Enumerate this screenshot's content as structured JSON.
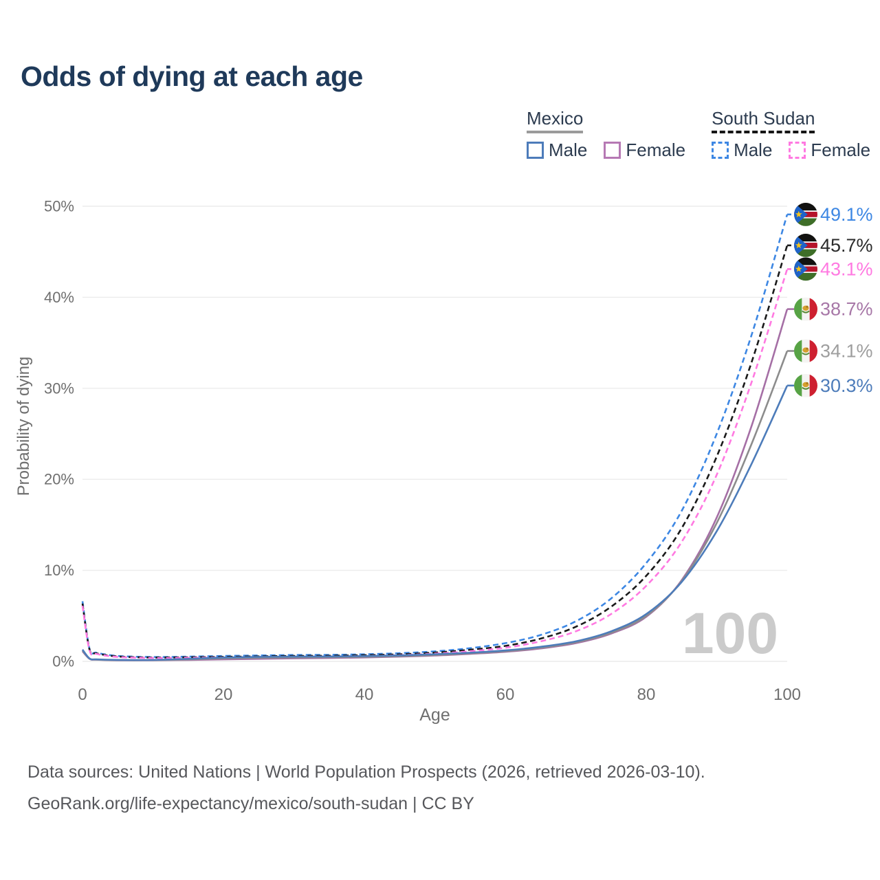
{
  "title": "Odds of dying at each age",
  "legend": {
    "groups": [
      {
        "title": "Mexico",
        "line_style": "solid",
        "underline_color": "#9b9b9b",
        "items": [
          {
            "label": "Male",
            "color": "#4d7cba",
            "dashed": false
          },
          {
            "label": "Female",
            "color": "#b679b4",
            "dashed": false
          }
        ]
      },
      {
        "title": "South Sudan",
        "line_style": "dashed",
        "underline_color": "#161616",
        "items": [
          {
            "label": "Male",
            "color": "#3d87e3",
            "dashed": true
          },
          {
            "label": "Female",
            "color": "#ff79e1",
            "dashed": true
          }
        ]
      }
    ]
  },
  "watermark": "100",
  "chart_data": {
    "type": "line",
    "title": "Odds of dying at each age",
    "xlabel": "Age",
    "ylabel": "Probability of dying",
    "xlim": [
      0,
      100
    ],
    "ylim": [
      0,
      50
    ],
    "xticks": [
      0,
      20,
      40,
      60,
      80,
      100
    ],
    "ytick_labels": [
      "0%",
      "10%",
      "20%",
      "30%",
      "40%",
      "50%"
    ],
    "grid": true,
    "legend_position": "top-right",
    "x": [
      0,
      1,
      2,
      5,
      10,
      15,
      20,
      25,
      30,
      35,
      40,
      45,
      50,
      55,
      60,
      65,
      70,
      75,
      80,
      85,
      90,
      95,
      100
    ],
    "series": [
      {
        "name": "South Sudan (male)",
        "country": "South Sudan",
        "sex": "male",
        "flag": "south-sudan",
        "dash": true,
        "color": "#3d87e3",
        "label_color": "#3d87e3",
        "end_label": "49.1%",
        "values": [
          6.6,
          1.35,
          0.95,
          0.6,
          0.48,
          0.52,
          0.6,
          0.65,
          0.7,
          0.72,
          0.78,
          0.9,
          1.1,
          1.45,
          2.0,
          2.9,
          4.4,
          6.9,
          10.8,
          16.5,
          25.0,
          36.0,
          49.1
        ]
      },
      {
        "name": "South Sudan (both sexes)",
        "country": "South Sudan",
        "sex": "both",
        "flag": "south-sudan",
        "dash": true,
        "color": "#1a1a1a",
        "label_color": "#2b2b2b",
        "end_label": "45.7%",
        "values": [
          6.35,
          1.28,
          0.88,
          0.54,
          0.42,
          0.45,
          0.5,
          0.55,
          0.6,
          0.62,
          0.68,
          0.78,
          0.97,
          1.28,
          1.7,
          2.5,
          3.8,
          6.0,
          9.4,
          14.6,
          22.5,
          33.0,
          45.7
        ]
      },
      {
        "name": "South Sudan (female)",
        "country": "South Sudan",
        "sex": "female",
        "flag": "south-sudan",
        "dash": true,
        "color": "#ff79e1",
        "label_color": "#ff79e1",
        "end_label": "43.1%",
        "values": [
          6.1,
          1.2,
          0.82,
          0.48,
          0.37,
          0.39,
          0.42,
          0.46,
          0.5,
          0.53,
          0.58,
          0.68,
          0.85,
          1.12,
          1.5,
          2.2,
          3.3,
          5.2,
          8.3,
          13.1,
          20.5,
          30.8,
          43.1
        ]
      },
      {
        "name": "Mexico (female)",
        "country": "Mexico",
        "sex": "female",
        "flag": "mexico",
        "dash": false,
        "color": "#a56fa5",
        "label_color": "#a777a7",
        "end_label": "38.7%",
        "values": [
          1.1,
          0.28,
          0.18,
          0.12,
          0.12,
          0.16,
          0.22,
          0.28,
          0.33,
          0.37,
          0.43,
          0.52,
          0.64,
          0.82,
          1.05,
          1.42,
          2.0,
          3.05,
          4.9,
          8.9,
          15.8,
          26.0,
          38.7
        ]
      },
      {
        "name": "Mexico (both sexes)",
        "country": "Mexico",
        "sex": "both",
        "flag": "mexico",
        "dash": false,
        "color": "#8c8c8c",
        "label_color": "#9e9e9e",
        "end_label": "34.1%",
        "values": [
          1.2,
          0.3,
          0.2,
          0.14,
          0.14,
          0.22,
          0.33,
          0.4,
          0.43,
          0.45,
          0.5,
          0.58,
          0.7,
          0.88,
          1.12,
          1.5,
          2.1,
          3.15,
          5.0,
          8.8,
          15.2,
          24.0,
          34.1
        ]
      },
      {
        "name": "Mexico (male)",
        "country": "Mexico",
        "sex": "male",
        "flag": "mexico",
        "dash": false,
        "color": "#4d7cba",
        "label_color": "#4d7cba",
        "end_label": "30.3%",
        "values": [
          1.3,
          0.32,
          0.22,
          0.16,
          0.16,
          0.28,
          0.42,
          0.5,
          0.52,
          0.54,
          0.58,
          0.66,
          0.78,
          0.95,
          1.2,
          1.6,
          2.2,
          3.3,
          5.2,
          8.7,
          14.3,
          21.8,
          30.3
        ]
      }
    ]
  },
  "footer": {
    "line1": "Data sources: United Nations | World Population Prospects (2026, retrieved 2026-03-10).",
    "line2": "GeoRank.org/life-expectancy/mexico/south-sudan | CC BY"
  },
  "colors": {
    "title": "#1f3a5a",
    "axis_text": "#6f6f6f",
    "gridline": "#ececec",
    "watermark": "#cbcbcb",
    "footer_text": "#56575b"
  }
}
